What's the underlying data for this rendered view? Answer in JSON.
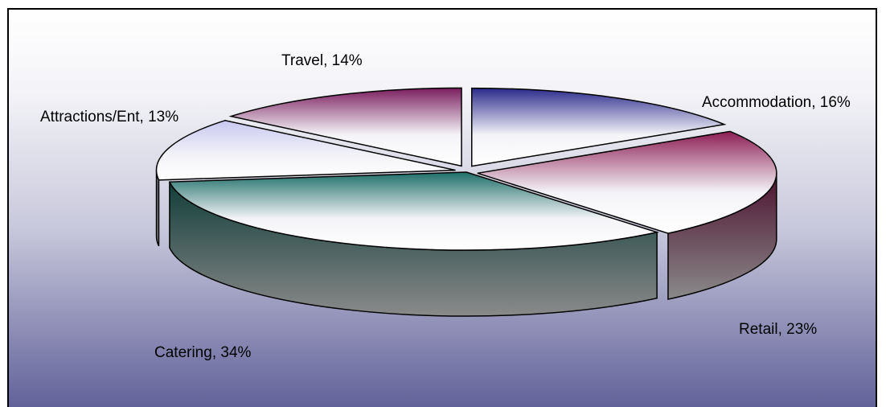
{
  "chart_data": {
    "type": "pie",
    "style": "3d-exploded",
    "slices": [
      {
        "label": "Accommodation",
        "value": 16,
        "text": "Accommodation, 16%",
        "color": "#2b2b8c"
      },
      {
        "label": "Retail",
        "value": 23,
        "text": "Retail, 23%",
        "color": "#8c1e55"
      },
      {
        "label": "Catering",
        "value": 34,
        "text": "Catering, 34%",
        "color": "#1e6e68"
      },
      {
        "label": "Attractions/Ent",
        "value": 13,
        "text": "Attractions/Ent, 13%",
        "color": "#c8c8f0"
      },
      {
        "label": "Travel",
        "value": 14,
        "text": "Travel, 14%",
        "color": "#7a1e5e"
      }
    ]
  }
}
